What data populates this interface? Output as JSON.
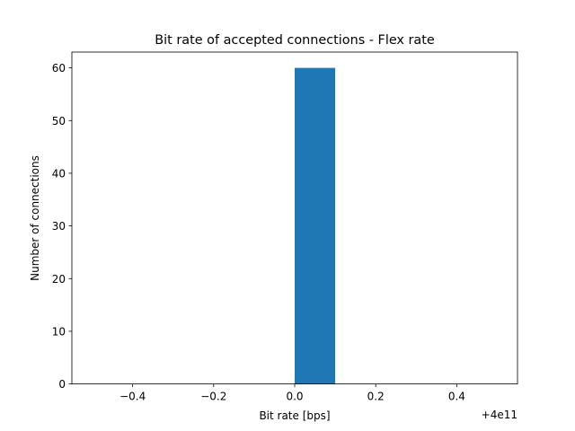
{
  "chart_data": {
    "type": "bar",
    "title": "Bit rate of accepted connections - Flex rate",
    "xlabel": "Bit rate [bps]",
    "ylabel": "Number of connections",
    "x_offset_label": "+4e11",
    "xlim": [
      -0.55,
      0.55
    ],
    "ylim": [
      0,
      63
    ],
    "xticks": [
      -0.4,
      -0.2,
      0.0,
      0.2,
      0.4
    ],
    "xtick_labels": [
      "−0.4",
      "−0.2",
      "0.0",
      "0.2",
      "0.4"
    ],
    "yticks": [
      0,
      10,
      20,
      30,
      40,
      50,
      60
    ],
    "ytick_labels": [
      "0",
      "10",
      "20",
      "30",
      "40",
      "50",
      "60"
    ],
    "bars": [
      {
        "x_start": 0.0,
        "x_end": 0.1,
        "value": 60
      }
    ],
    "bar_color": "#1f77b4",
    "grid": false
  }
}
